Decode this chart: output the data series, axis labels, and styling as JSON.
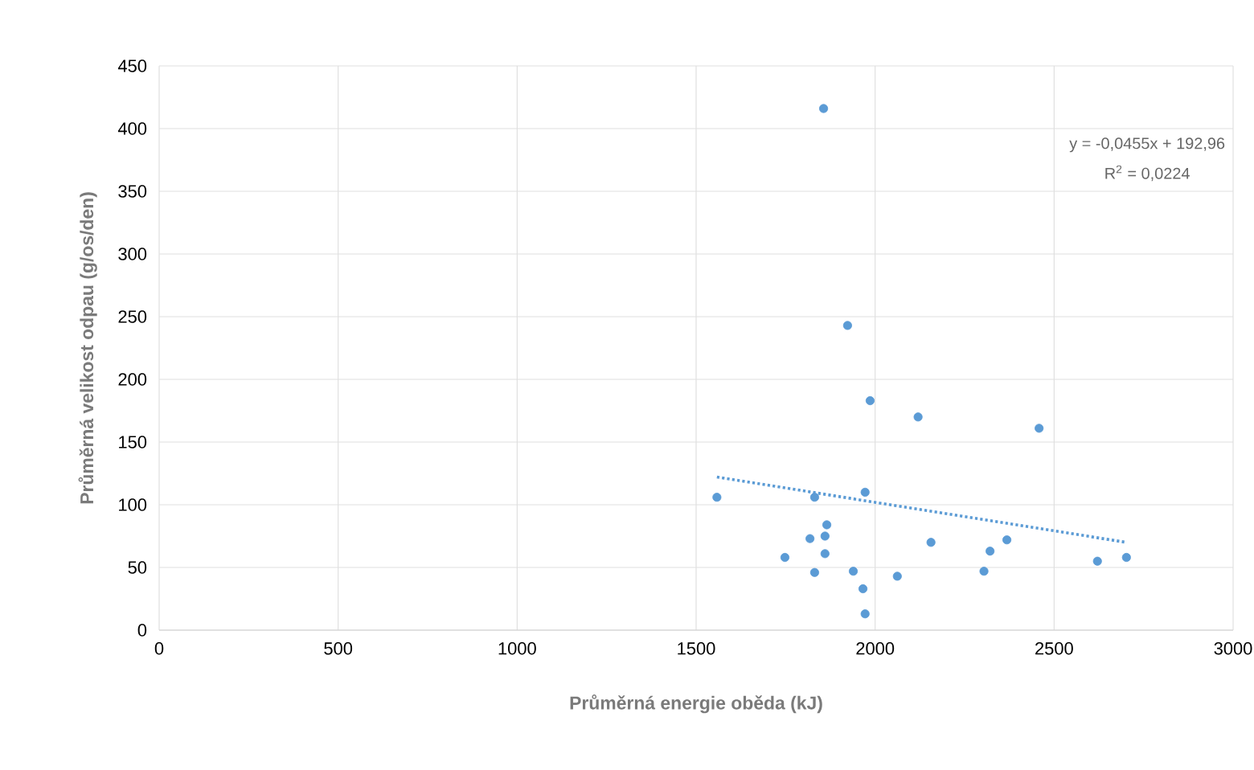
{
  "chart_data": {
    "type": "scatter",
    "xlabel": "Průměrná energie oběda (kJ)",
    "ylabel": "Průměrná velikost odpau (g/os/den)",
    "xlim": [
      0,
      3000
    ],
    "xticks": [
      0,
      500,
      1000,
      1500,
      2000,
      2500,
      3000
    ],
    "ylim": [
      0,
      450
    ],
    "yticks": [
      0,
      50,
      100,
      150,
      200,
      250,
      300,
      350,
      400,
      450
    ],
    "grid": true,
    "marker": "circle",
    "annotations": [
      "y = -0,0455x + 192,96",
      "R$^{2}$ = 0,0224"
    ],
    "series": [
      {
        "color": "#5b9bd5",
        "x": [
          1856,
          1923,
          1986,
          2120,
          2458,
          1972,
          1558,
          1831,
          1865,
          1818,
          1860,
          1860,
          1748,
          1831,
          1939,
          1966,
          1972,
          2062,
          2156,
          2321,
          2368,
          2304,
          2621,
          2702
        ],
        "values": [
          416,
          243,
          183,
          170,
          161,
          110,
          106,
          106,
          84,
          73,
          75,
          61,
          58,
          46,
          47,
          33,
          13,
          43,
          70,
          63,
          72,
          47,
          55,
          58
        ]
      },
      {
        "type": "line",
        "color": "#5b9bd5",
        "line_style": "dotted",
        "marker": "none",
        "x": [
          1558,
          2702
        ],
        "values": [
          122.1,
          70.0
        ]
      }
    ]
  }
}
